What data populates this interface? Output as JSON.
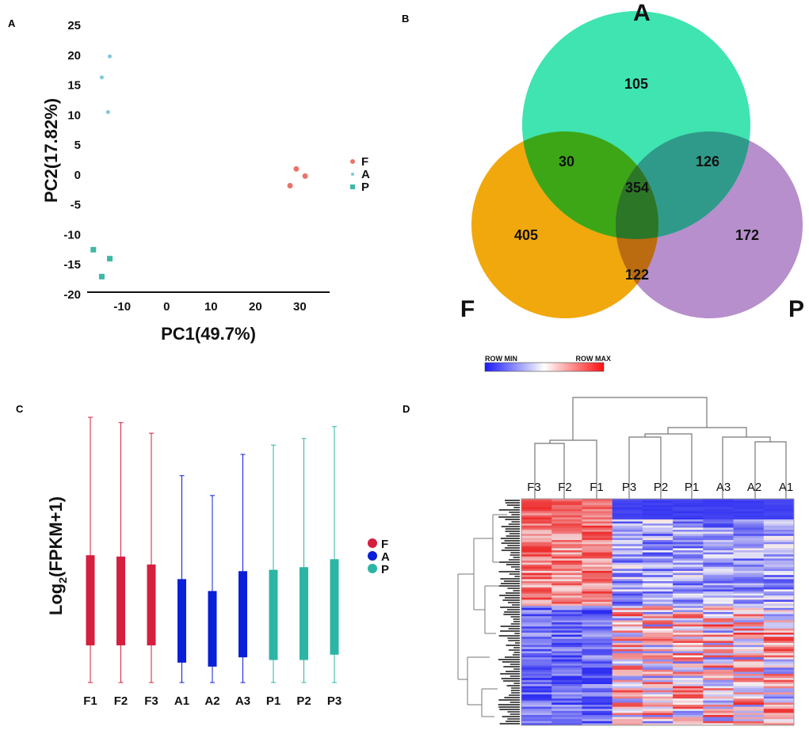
{
  "colors": {
    "F": "#e8756a",
    "A": "#7fc9d9",
    "P": "#3fb8a5",
    "boxF": "#d51f3f",
    "boxA": "#0a1fd8",
    "boxP": "#2cb5a4",
    "vennA": "#3fe4b0",
    "vennF": "#f1a80d",
    "vennP": "#b68fcc",
    "hmLow": "#2b2bf2",
    "hmMid": "#f4f1f4",
    "hmHigh": "#ee2b2b"
  },
  "chart_data": [
    {
      "panel": "A",
      "type": "scatter",
      "xlabel": "PC1(49.7%)",
      "ylabel": "PC2(17.82%)",
      "xlim": [
        -17,
        36
      ],
      "ylim": [
        -20,
        25
      ],
      "xticks": [
        -10,
        0,
        10,
        20,
        30
      ],
      "xtick_labels": [
        "-10",
        "0",
        "10",
        "20",
        "30"
      ],
      "yticks": [
        25,
        20,
        15,
        10,
        5,
        0,
        -5,
        -10,
        -15,
        -20
      ],
      "ytick_labels": [
        "25",
        "20",
        "15",
        "10",
        "5",
        "0",
        "-5",
        "-10",
        "-15",
        "-20"
      ],
      "legend": [
        "F",
        "A",
        "P"
      ],
      "series": [
        {
          "name": "F",
          "marker": "circle",
          "points": [
            [
              29.2,
              1.0
            ],
            [
              31.2,
              -0.2
            ],
            [
              27.8,
              -1.8
            ]
          ]
        },
        {
          "name": "A",
          "marker": "star",
          "points": [
            [
              -12.8,
              19.8
            ],
            [
              -14.6,
              16.3
            ],
            [
              -13.2,
              10.5
            ]
          ]
        },
        {
          "name": "P",
          "marker": "square",
          "points": [
            [
              -16.5,
              -12.5
            ],
            [
              -12.8,
              -14.0
            ],
            [
              -14.6,
              -17.0
            ]
          ]
        }
      ]
    },
    {
      "panel": "B",
      "type": "venn",
      "sets": [
        "A",
        "F",
        "P"
      ],
      "regions": {
        "A_only": "105",
        "F_only": "405",
        "P_only": "172",
        "A_F": "30",
        "A_P": "126",
        "F_P": "122",
        "A_F_P": "354"
      },
      "colorbar": {
        "min_label": "ROW MIN",
        "max_label": "ROW MAX"
      }
    },
    {
      "panel": "C",
      "type": "box",
      "ylabel": "Log2(FPKM+1)",
      "ylabel_base": "Log",
      "ylabel_sub": "2",
      "ylabel_rest": "(FPKM+1)",
      "ylim": [
        0,
        10
      ],
      "categories": [
        "F1",
        "F2",
        "F3",
        "A1",
        "A2",
        "A3",
        "P1",
        "P2",
        "P3"
      ],
      "groups": [
        "F",
        "F",
        "F",
        "A",
        "A",
        "A",
        "P",
        "P",
        "P"
      ],
      "legend": [
        "F",
        "A",
        "P"
      ],
      "series": [
        {
          "label": "F1",
          "min": 0.0,
          "q1": 1.4,
          "q3": 4.8,
          "max": 10.0
        },
        {
          "label": "F2",
          "min": 0.0,
          "q1": 1.4,
          "q3": 4.75,
          "max": 9.8
        },
        {
          "label": "F3",
          "min": 0.0,
          "q1": 1.4,
          "q3": 4.45,
          "max": 9.4
        },
        {
          "label": "A1",
          "min": 0.0,
          "q1": 0.75,
          "q3": 3.9,
          "max": 7.8
        },
        {
          "label": "A2",
          "min": 0.0,
          "q1": 0.6,
          "q3": 3.45,
          "max": 7.05
        },
        {
          "label": "A3",
          "min": 0.0,
          "q1": 0.95,
          "q3": 4.2,
          "max": 8.6
        },
        {
          "label": "P1",
          "min": 0.0,
          "q1": 0.85,
          "q3": 4.25,
          "max": 8.95
        },
        {
          "label": "P2",
          "min": 0.0,
          "q1": 0.85,
          "q3": 4.35,
          "max": 9.2
        },
        {
          "label": "P3",
          "min": 0.0,
          "q1": 1.05,
          "q3": 4.65,
          "max": 9.65
        }
      ]
    },
    {
      "panel": "D",
      "type": "heatmap",
      "columns": [
        "F3",
        "F2",
        "F1",
        "P3",
        "P2",
        "P1",
        "A3",
        "A2",
        "A1"
      ],
      "scale": [
        "ROW MIN",
        "ROW MAX"
      ]
    }
  ]
}
